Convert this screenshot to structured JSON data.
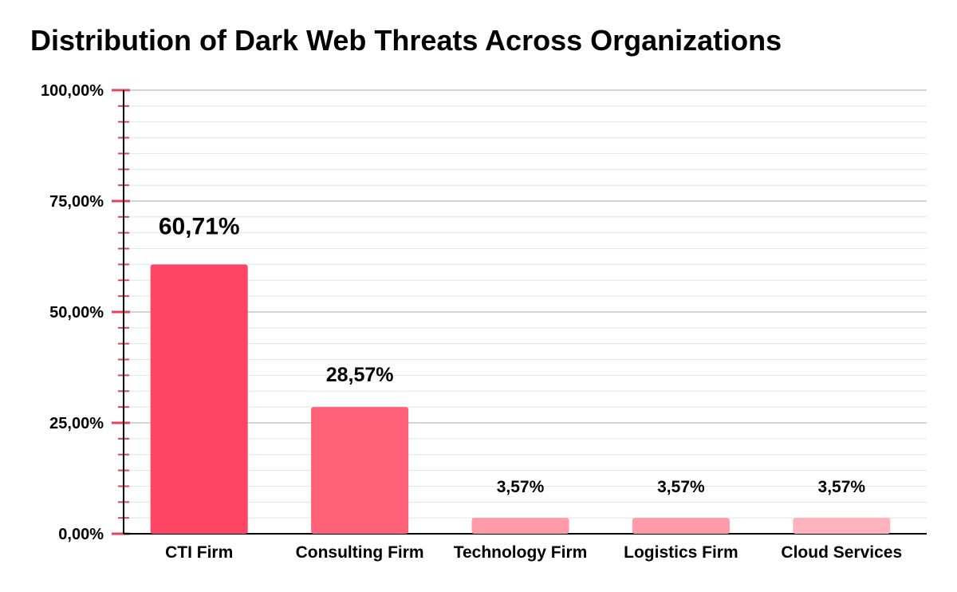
{
  "chart_data": {
    "type": "bar",
    "title": "Distribution of Dark Web Threats Across Organizations",
    "xlabel": "",
    "ylabel": "",
    "ylim": [
      0,
      100
    ],
    "y_ticks": [
      {
        "value": 0,
        "label": "0,00%"
      },
      {
        "value": 25,
        "label": "25,00%"
      },
      {
        "value": 50,
        "label": "50,00%"
      },
      {
        "value": 75,
        "label": "75,00%"
      },
      {
        "value": 100,
        "label": "100,00%"
      }
    ],
    "grid": true,
    "legend": "none",
    "categories": [
      "CTI Firm",
      "Consulting Firm",
      "Technology Firm",
      "Logistics Firm",
      "Cloud Services"
    ],
    "values": [
      60.71,
      28.57,
      3.57,
      3.57,
      3.57
    ],
    "data_labels": [
      "60,71%",
      "28,57%",
      "3,57%",
      "3,57%",
      "3,57%"
    ],
    "colors": [
      "#ff4563",
      "#ff6178",
      "#ff9aa8",
      "#ff9aa8",
      "#ffb3bd"
    ],
    "axis_color": "#e8415c"
  }
}
